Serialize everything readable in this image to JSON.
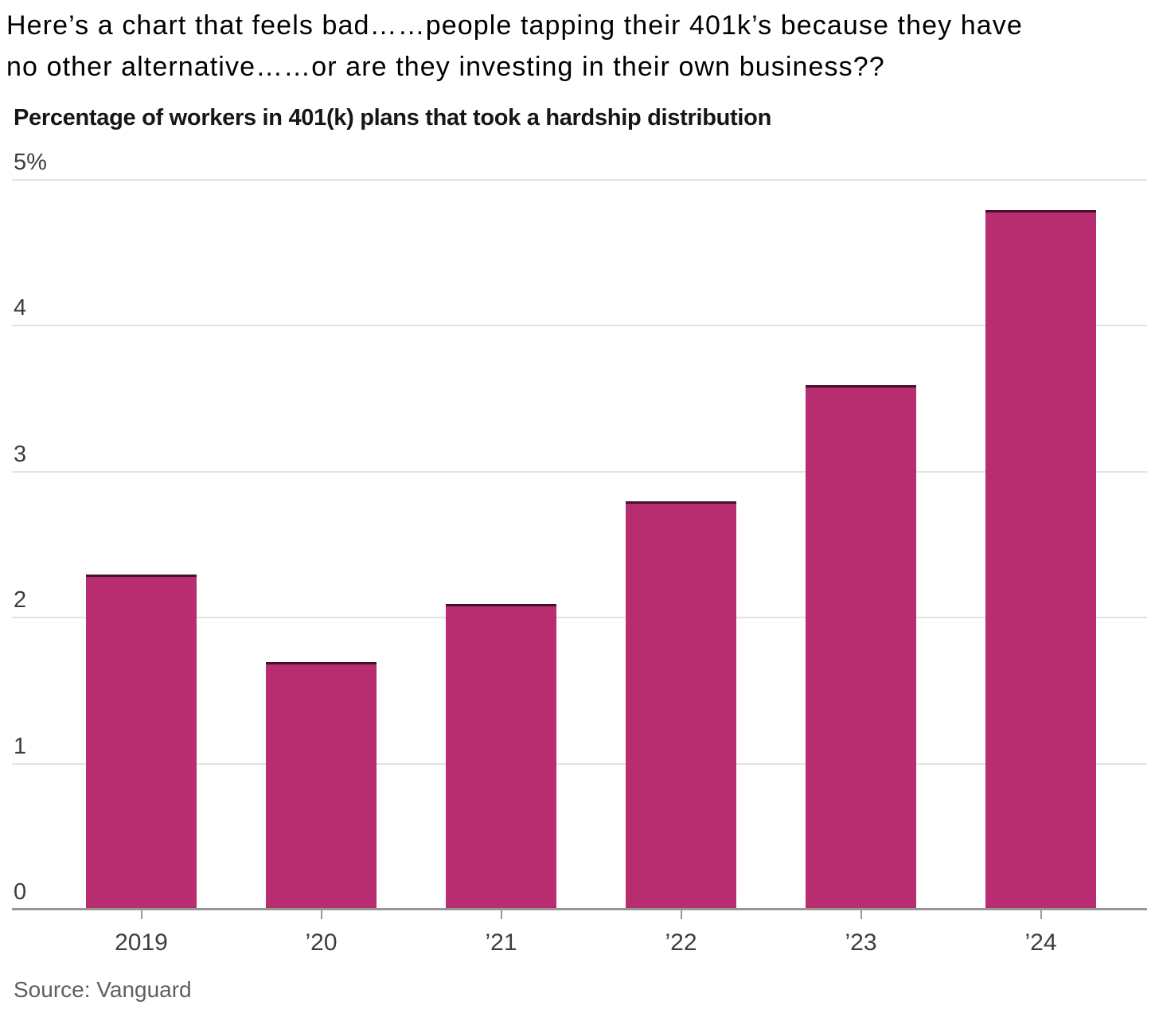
{
  "caption": {
    "line1": "Here’s a chart that feels bad……people tapping their 401k’s because they have",
    "line2": "no other alternative……or are they investing in their own business??"
  },
  "chart": {
    "title": "Percentage of workers in 401(k) plans that took a hardship distribution",
    "source": "Source: Vanguard"
  },
  "chart_data": {
    "type": "bar",
    "title": "Percentage of workers in 401(k) plans that took a hardship distribution",
    "categories": [
      "2019",
      "’20",
      "’21",
      "’22",
      "’23",
      "’24"
    ],
    "values": [
      2.3,
      1.7,
      2.1,
      2.8,
      3.6,
      4.8
    ],
    "xlabel": "",
    "ylabel": "",
    "ylim": [
      0,
      5
    ],
    "yticks": [
      {
        "value": 0,
        "label": "0"
      },
      {
        "value": 1,
        "label": "1"
      },
      {
        "value": 2,
        "label": "2"
      },
      {
        "value": 3,
        "label": "3"
      },
      {
        "value": 4,
        "label": "4"
      },
      {
        "value": 5,
        "label": "5%"
      }
    ],
    "grid": "horizontal",
    "legend": "none",
    "source": "Source: Vanguard"
  },
  "colors": {
    "bar_fill": "#b72d70",
    "bar_top_edge": "#451129",
    "gridline": "#e3e3e3",
    "axis": "#979797",
    "caption_text": "#000000",
    "title_text": "#161616",
    "tick_text": "#3d3d3d",
    "source_text": "#5f5f5f"
  }
}
